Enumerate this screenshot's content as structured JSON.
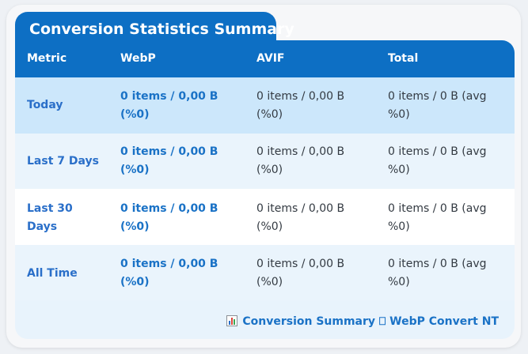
{
  "title": "Conversion Statistics Summary",
  "columns": [
    "Metric",
    "WebP",
    "AVIF",
    "Total"
  ],
  "rows": [
    {
      "metric": "Today",
      "webp": "0 items / 0,00 B (%0)",
      "avif": "0 items / 0,00 B (%0)",
      "total": "0 items / 0 B (avg %0)"
    },
    {
      "metric": "Last 7 Days",
      "webp": "0 items / 0,00 B (%0)",
      "avif": "0 items / 0,00 B (%0)",
      "total": "0 items / 0 B (avg %0)"
    },
    {
      "metric": "Last 30 Days",
      "webp": "0 items / 0,00 B (%0)",
      "avif": "0 items / 0,00 B (%0)",
      "total": "0 items / 0 B (avg %0)"
    },
    {
      "metric": "All Time",
      "webp": "0 items / 0,00 B (%0)",
      "avif": "0 items / 0,00 B (%0)",
      "total": "0 items / 0 B (avg %0)"
    }
  ],
  "footer": {
    "icon": "bar-chart-icon",
    "text": "Conversion Summary ⎕ WebP Convert NT"
  },
  "colors": {
    "header": "#0d6fc4",
    "row_highlight": "#cce7fb",
    "row_alt": "#eaf4fc",
    "row_plain": "#ffffff",
    "link": "#2a6fc9"
  }
}
